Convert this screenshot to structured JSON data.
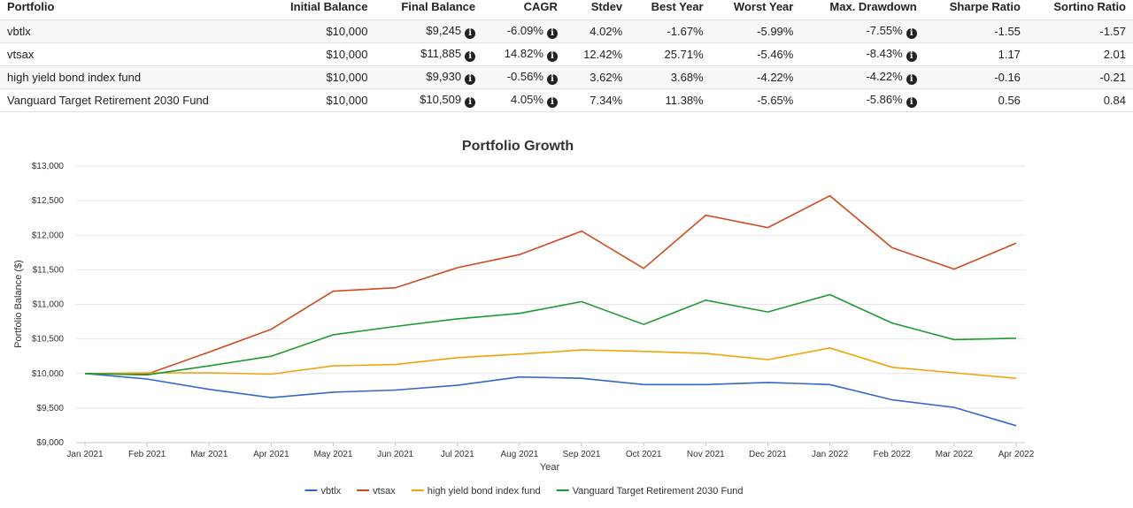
{
  "table": {
    "headers": [
      "Portfolio",
      "Initial Balance",
      "Final Balance",
      "CAGR",
      "Stdev",
      "Best Year",
      "Worst Year",
      "Max. Drawdown",
      "Sharpe Ratio",
      "Sortino Ratio"
    ],
    "rows": [
      {
        "portfolio": "vbtlx",
        "initial": "$10,000",
        "final": "$9,245",
        "cagr": "-6.09%",
        "stdev": "4.02%",
        "best": "-1.67%",
        "worst": "-5.99%",
        "drawdown": "-7.55%",
        "sharpe": "-1.55",
        "sortino": "-1.57"
      },
      {
        "portfolio": "vtsax",
        "initial": "$10,000",
        "final": "$11,885",
        "cagr": "14.82%",
        "stdev": "12.42%",
        "best": "25.71%",
        "worst": "-5.46%",
        "drawdown": "-8.43%",
        "sharpe": "1.17",
        "sortino": "2.01"
      },
      {
        "portfolio": "high yield bond index fund",
        "initial": "$10,000",
        "final": "$9,930",
        "cagr": "-0.56%",
        "stdev": "3.62%",
        "best": "3.68%",
        "worst": "-4.22%",
        "drawdown": "-4.22%",
        "sharpe": "-0.16",
        "sortino": "-0.21"
      },
      {
        "portfolio": "Vanguard Target Retirement 2030 Fund",
        "initial": "$10,000",
        "final": "$10,509",
        "cagr": "4.05%",
        "stdev": "7.34%",
        "best": "11.38%",
        "worst": "-5.65%",
        "drawdown": "-5.86%",
        "sharpe": "0.56",
        "sortino": "0.84"
      }
    ],
    "info_icon": "info-circle-icon"
  },
  "chart_data": {
    "type": "line",
    "title": "Portfolio Growth",
    "xlabel": "Year",
    "ylabel": "Portfolio Balance ($)",
    "ylim": [
      9000,
      13000
    ],
    "yticks": [
      9000,
      9500,
      10000,
      10500,
      11000,
      11500,
      12000,
      12500,
      13000
    ],
    "ytick_labels": [
      "$9,000",
      "$9,500",
      "$10,000",
      "$10,500",
      "$11,000",
      "$11,500",
      "$12,000",
      "$12,500",
      "$13,000"
    ],
    "x": [
      "Jan 2021",
      "Feb 2021",
      "Mar 2021",
      "Apr 2021",
      "May 2021",
      "Jun 2021",
      "Jul 2021",
      "Aug 2021",
      "Sep 2021",
      "Oct 2021",
      "Nov 2021",
      "Dec 2021",
      "Jan 2022",
      "Feb 2022",
      "Mar 2022",
      "Apr 2022"
    ],
    "grid": "horizontal",
    "legend": "bottom",
    "series": [
      {
        "name": "vbtlx",
        "color": "#3366cc",
        "values": [
          10000,
          9920,
          9770,
          9650,
          9730,
          9760,
          9830,
          9950,
          9930,
          9840,
          9840,
          9870,
          9840,
          9620,
          9510,
          9245
        ]
      },
      {
        "name": "vtsax",
        "color": "#d04a1e",
        "values": [
          10000,
          9990,
          10310,
          10640,
          11190,
          11240,
          11530,
          11720,
          12060,
          11520,
          12290,
          12110,
          12570,
          11820,
          11510,
          11885
        ]
      },
      {
        "name": "high yield bond index fund",
        "color": "#f0a30a",
        "values": [
          10000,
          10010,
          10010,
          9990,
          10110,
          10130,
          10230,
          10280,
          10340,
          10320,
          10290,
          10200,
          10370,
          10090,
          10010,
          9930
        ]
      },
      {
        "name": "Vanguard Target Retirement 2030 Fund",
        "color": "#1e9a2e",
        "values": [
          10000,
          9980,
          10110,
          10250,
          10560,
          10680,
          10790,
          10870,
          11040,
          10710,
          11060,
          10890,
          11140,
          10730,
          10490,
          10509
        ]
      }
    ]
  }
}
